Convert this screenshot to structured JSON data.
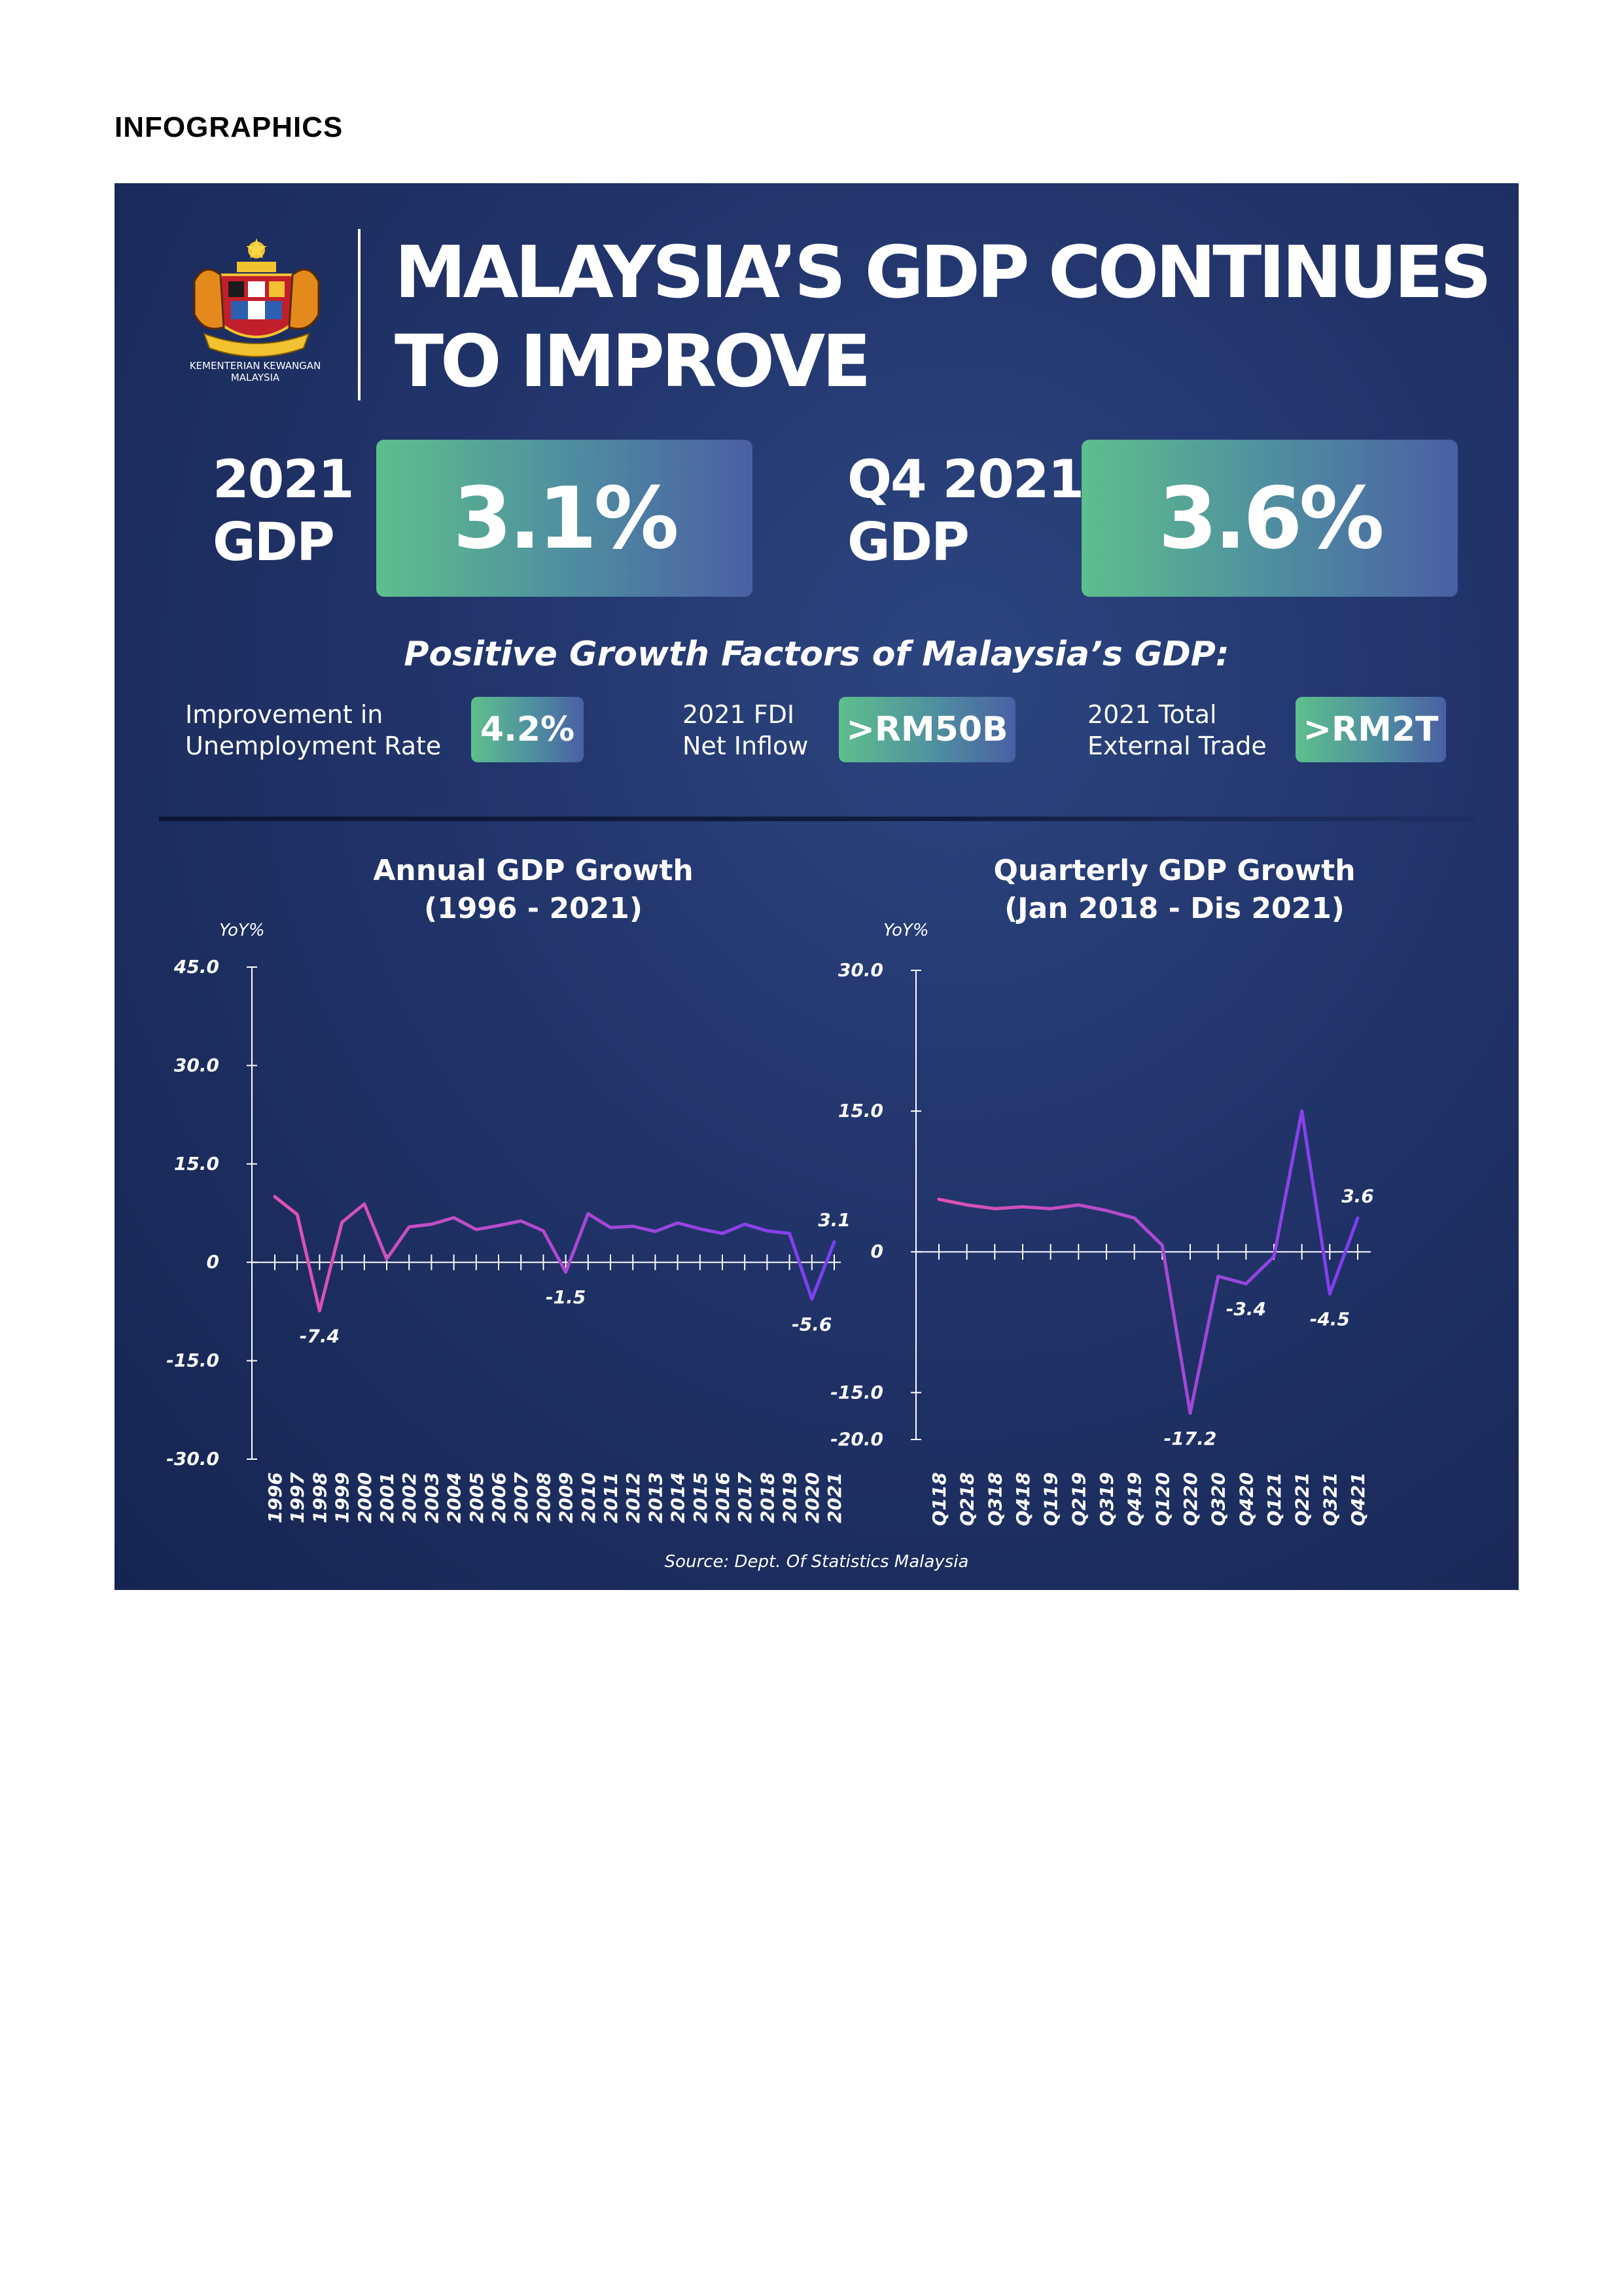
{
  "page": {
    "heading": "INFOGRAPHICS"
  },
  "header": {
    "ministry_line1": "KEMENTERIAN KEWANGAN",
    "ministry_line2": "MALAYSIA",
    "title_line1": "MALAYSIA’S GDP CONTINUES",
    "title_line2": "TO IMPROVE"
  },
  "stats": [
    {
      "label_line1": "2021",
      "label_line2": "GDP",
      "value": "3.1%"
    },
    {
      "label_line1": "Q4 2021",
      "label_line2": "GDP",
      "value": "3.6%"
    }
  ],
  "factors": {
    "title": "Positive Growth Factors of Malaysia’s GDP:",
    "items": [
      {
        "label_line1": "Improvement in",
        "label_line2": "Unemployment Rate",
        "value": "4.2%"
      },
      {
        "label_line1": "2021 FDI",
        "label_line2": "Net Inflow",
        "value": ">RM50B"
      },
      {
        "label_line1": "2021 Total",
        "label_line2": "External Trade",
        "value": ">RM2T"
      }
    ]
  },
  "colors": {
    "panel": "#1f3166",
    "line_start": "#e053b0",
    "line_end": "#7b3ff2",
    "badge_start": "#5ebf8c",
    "badge_end": "#4a5fa4"
  },
  "source": "Source: Dept. Of Statistics Malaysia",
  "chart_data": [
    {
      "type": "line",
      "title_line1": "Annual GDP Growth",
      "title_line2": "(1996 - 2021)",
      "ylabel": "YoY%",
      "ylim": [
        -30,
        45
      ],
      "yticks": [
        "45.0",
        "30.0",
        "15.0",
        "0",
        "-15.0",
        "-30.0"
      ],
      "ytick_values": [
        45,
        30,
        15,
        0,
        -15,
        -30
      ],
      "grid": false,
      "categories": [
        "1996",
        "1997",
        "1998",
        "1999",
        "2000",
        "2001",
        "2002",
        "2003",
        "2004",
        "2005",
        "2006",
        "2007",
        "2008",
        "2009",
        "2010",
        "2011",
        "2012",
        "2013",
        "2014",
        "2015",
        "2016",
        "2017",
        "2018",
        "2019",
        "2020",
        "2021"
      ],
      "values": [
        10.0,
        7.3,
        -7.4,
        6.1,
        8.9,
        0.5,
        5.4,
        5.8,
        6.8,
        5.0,
        5.6,
        6.3,
        4.8,
        -1.5,
        7.4,
        5.3,
        5.5,
        4.7,
        6.0,
        5.1,
        4.4,
        5.8,
        4.8,
        4.4,
        -5.6,
        3.1
      ],
      "annotations": [
        {
          "index": 2,
          "text": "-7.4",
          "pos": "below"
        },
        {
          "index": 13,
          "text": "-1.5",
          "pos": "below"
        },
        {
          "index": 24,
          "text": "-5.6",
          "pos": "below"
        },
        {
          "index": 25,
          "text": "3.1",
          "pos": "above"
        }
      ]
    },
    {
      "type": "line",
      "title_line1": "Quarterly GDP Growth",
      "title_line2": "(Jan 2018 - Dis 2021)",
      "ylabel": "YoY%",
      "ylim": [
        -20,
        30
      ],
      "yticks": [
        "30.0",
        "15.0",
        "0",
        "-15.0",
        "-20.0"
      ],
      "ytick_values": [
        30,
        15,
        0,
        -15,
        -20
      ],
      "grid": false,
      "categories": [
        "Q118",
        "Q218",
        "Q318",
        "Q418",
        "Q119",
        "Q219",
        "Q319",
        "Q419",
        "Q120",
        "Q220",
        "Q320",
        "Q420",
        "Q121",
        "Q221",
        "Q321",
        "Q421"
      ],
      "values": [
        5.6,
        5.0,
        4.6,
        4.8,
        4.6,
        5.0,
        4.4,
        3.6,
        0.7,
        -17.2,
        -2.6,
        -3.4,
        -0.5,
        15.0,
        -4.5,
        3.6
      ],
      "annotations": [
        {
          "index": 9,
          "text": "-17.2",
          "pos": "below"
        },
        {
          "index": 11,
          "text": "-3.4",
          "pos": "below"
        },
        {
          "index": 14,
          "text": "-4.5",
          "pos": "below"
        },
        {
          "index": 15,
          "text": "3.6",
          "pos": "above"
        }
      ]
    }
  ]
}
